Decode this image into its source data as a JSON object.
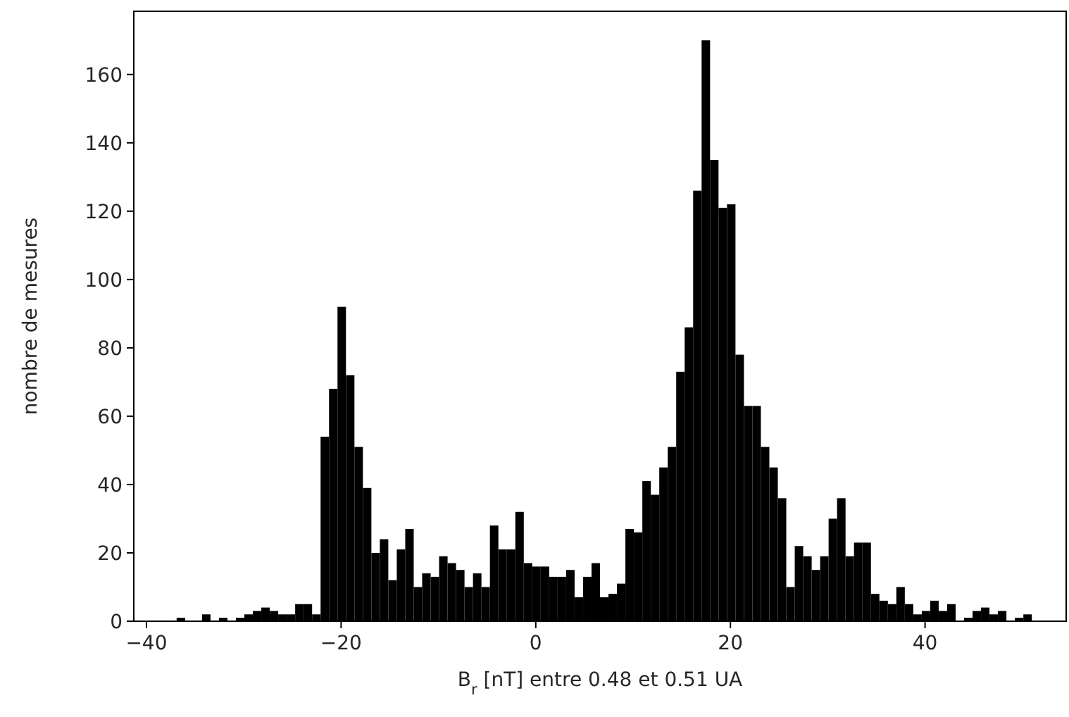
{
  "chart_data": {
    "type": "histogram",
    "xlabel": "B$_{r}$ [nT] entre 0.48 et 0.51 UA",
    "ylabel": "nombre de mesures",
    "color": "#000000",
    "bins": [
      -36.9,
      -36.03,
      -35.16,
      -34.29,
      -33.42,
      -32.55,
      -31.68,
      -30.81,
      -29.94,
      -29.07,
      -28.2,
      -27.33,
      -26.46,
      -25.59,
      -24.72,
      -23.85,
      -22.98,
      -22.11,
      -21.24,
      -20.37,
      -19.5,
      -18.63,
      -17.76,
      -16.89,
      -16.02,
      -15.15,
      -14.28,
      -13.41,
      -12.54,
      -11.67,
      -10.8,
      -9.93,
      -9.06,
      -8.19,
      -7.32,
      -6.45,
      -5.58,
      -4.71,
      -3.84,
      -2.97,
      -2.1,
      -1.23,
      -0.36,
      0.51,
      1.38,
      2.25,
      3.12,
      3.99,
      4.86,
      5.73,
      6.6,
      7.47,
      8.34,
      9.21,
      10.08,
      10.95,
      11.82,
      12.69,
      13.56,
      14.43,
      15.3,
      16.17,
      17.04,
      17.91,
      18.78,
      19.65,
      20.52,
      21.39,
      22.26,
      23.13,
      24.0,
      24.87,
      25.74,
      26.61,
      27.48,
      28.35,
      29.22,
      30.09,
      30.96,
      31.83,
      32.7,
      33.57,
      34.44,
      35.31,
      36.18,
      37.05,
      37.92,
      38.79,
      39.66,
      40.53,
      41.4,
      42.27,
      43.14,
      44.01,
      44.88,
      45.75,
      46.62,
      47.49,
      48.36,
      49.23,
      50.1,
      50.97
    ],
    "values": [
      1,
      0,
      0,
      2,
      0,
      1,
      0,
      1,
      2,
      3,
      4,
      3,
      2,
      2,
      5,
      5,
      2,
      54,
      68,
      92,
      72,
      51,
      39,
      20,
      24,
      12,
      21,
      27,
      10,
      14,
      13,
      19,
      17,
      15,
      10,
      14,
      10,
      28,
      21,
      21,
      32,
      17,
      16,
      16,
      13,
      13,
      15,
      7,
      13,
      17,
      7,
      8,
      11,
      27,
      26,
      41,
      37,
      45,
      51,
      73,
      86,
      126,
      170,
      135,
      121,
      122,
      78,
      63,
      63,
      51,
      45,
      36,
      10,
      22,
      19,
      15,
      19,
      30,
      36,
      19,
      23,
      23,
      8,
      6,
      5,
      10,
      5,
      2,
      3,
      6,
      3,
      5,
      0,
      1,
      3,
      4,
      2,
      3,
      0,
      1,
      2
    ],
    "xlim": [
      -41.3,
      54.5
    ],
    "ylim": [
      0,
      178.5
    ],
    "xticks": [
      -40,
      -20,
      0,
      20,
      40
    ],
    "yticks": [
      0,
      20,
      40,
      60,
      80,
      100,
      120,
      140,
      160
    ]
  }
}
